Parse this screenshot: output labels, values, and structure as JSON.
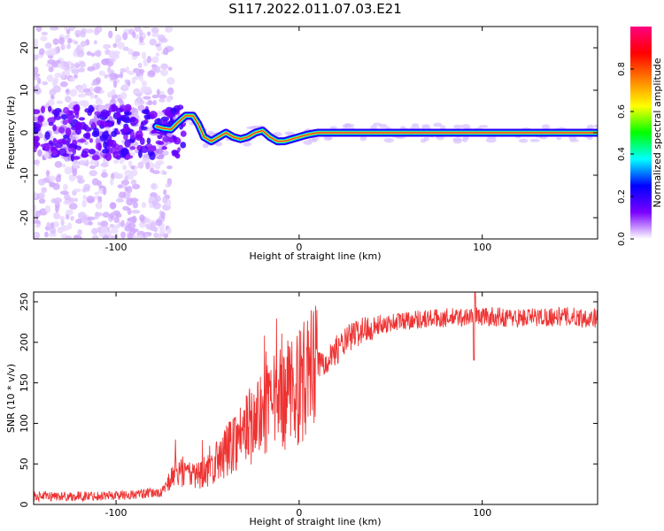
{
  "title": "S117.2022.011.07.03.E21",
  "chart_data": [
    {
      "type": "heatmap",
      "xlabel": "Height of straight line (km)",
      "ylabel": "Frequency (Hz)",
      "xlim": [
        -145,
        163
      ],
      "ylim": [
        -25,
        25
      ],
      "x_ticks": [
        -100,
        0,
        100
      ],
      "x_tick_labels": [
        "-100",
        "0",
        "100"
      ],
      "y_ticks": [
        -20,
        -10,
        0,
        10,
        20
      ],
      "y_tick_labels": [
        "-20",
        "-10",
        "0",
        "10",
        "20"
      ],
      "colorbar": {
        "label": "Normalized spectral amplitude",
        "range": [
          0,
          1
        ],
        "ticks": [
          0,
          0.2,
          0.4,
          0.6,
          0.8
        ],
        "tick_labels": [
          "0.0",
          "0.2",
          "0.4",
          "0.6",
          "0.8"
        ],
        "colormap": [
          "#ffffff",
          "#7a00ff",
          "#0000ff",
          "#00ffff",
          "#00ff00",
          "#ffff00",
          "#ff8000",
          "#ff0000",
          "#ff0080"
        ]
      },
      "peak_frequency_track": {
        "x": [
          -78,
          -74,
          -70,
          -66,
          -62,
          -58,
          -55,
          -52,
          -48,
          -44,
          -40,
          -36,
          -32,
          -28,
          -24,
          -20,
          -16,
          -12,
          -8,
          -4,
          0,
          4,
          10,
          40,
          80,
          120,
          163
        ],
        "y": [
          1.5,
          1,
          0.8,
          2.5,
          4,
          4,
          2,
          -1,
          -2,
          -1,
          0,
          -1,
          -1.5,
          -1,
          0,
          0.5,
          -1,
          -2,
          -2,
          -1.5,
          -1,
          -0.5,
          0,
          0,
          0,
          0,
          0
        ]
      },
      "background_noise_region": {
        "x": [
          -145,
          -78
        ],
        "y": [
          -25,
          25
        ]
      }
    },
    {
      "type": "line",
      "xlabel": "Height of straight line (km)",
      "ylabel": "SNR (10 * v/v)",
      "xlim": [
        -145,
        163
      ],
      "ylim": [
        0,
        262
      ],
      "x_ticks": [
        -100,
        0,
        100
      ],
      "x_tick_labels": [
        "-100",
        "0",
        "100"
      ],
      "y_ticks": [
        0,
        50,
        100,
        150,
        200,
        250
      ],
      "y_tick_labels": [
        "0",
        "50",
        "100",
        "150",
        "200",
        "250"
      ],
      "color": "#ee3333",
      "series": [
        {
          "x": [
            -145,
            -120,
            -90,
            -75,
            -70,
            -66,
            -60,
            -50,
            -42,
            -35,
            -28,
            -20,
            -10,
            0,
            10,
            20,
            30,
            40,
            60,
            80,
            100,
            120,
            140,
            163
          ],
          "values": [
            10,
            10,
            12,
            15,
            30,
            45,
            35,
            40,
            60,
            80,
            95,
            110,
            130,
            145,
            170,
            190,
            210,
            220,
            228,
            230,
            232,
            230,
            232,
            230
          ]
        }
      ]
    }
  ]
}
